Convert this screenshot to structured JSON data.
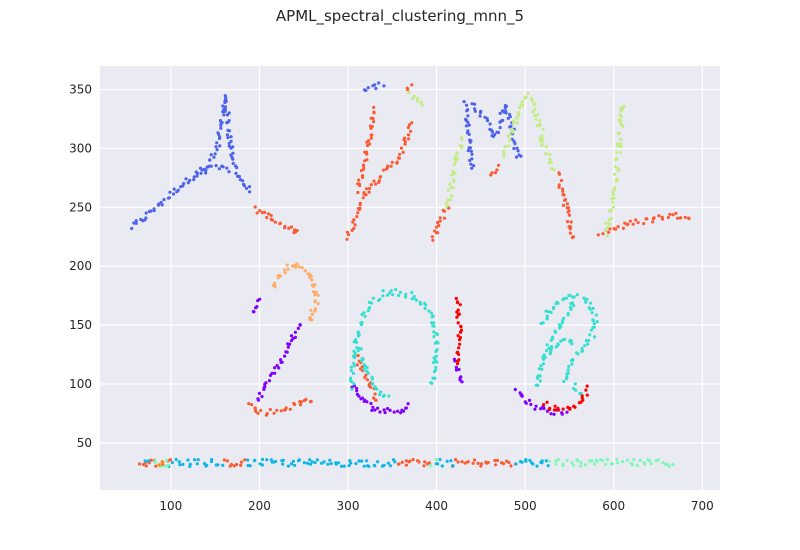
{
  "chart_data": {
    "type": "scatter",
    "title": "APML_spectral_clustering_mnn_5",
    "xlabel": "",
    "ylabel": "",
    "xlim": [
      20,
      720
    ],
    "ylim": [
      10,
      370
    ],
    "xticks": [
      100,
      200,
      300,
      400,
      500,
      600,
      700
    ],
    "yticks": [
      50,
      100,
      150,
      200,
      250,
      300,
      350
    ],
    "grid": true,
    "style": "seaborn-darkgrid",
    "background": "#eaeaf2",
    "gridColor": "#ffffff",
    "clusters": [
      {
        "color": "#4d63ea",
        "segments": [
          [
            [
              55,
              233
            ],
            [
              65,
              238
            ],
            [
              80,
              248
            ],
            [
              95,
              258
            ],
            [
              110,
              268
            ],
            [
              125,
              276
            ],
            [
              140,
              282
            ],
            [
              152,
              300
            ],
            [
              158,
              320
            ],
            [
              161,
              345
            ]
          ],
          [
            [
              161,
              345
            ],
            [
              165,
              320
            ],
            [
              168,
              300
            ],
            [
              172,
              285
            ],
            [
              180,
              272
            ],
            [
              190,
              262
            ]
          ],
          [
            [
              128,
              280
            ],
            [
              140,
              282
            ],
            [
              150,
              283
            ],
            [
              160,
              283
            ],
            [
              168,
              282
            ]
          ],
          [
            [
              318,
              348
            ],
            [
              330,
              352
            ],
            [
              342,
              355
            ]
          ],
          [
            [
              432,
              338
            ],
            [
              436,
              320
            ],
            [
              438,
              298
            ],
            [
              440,
              280
            ]
          ],
          [
            [
              440,
              338
            ],
            [
              450,
              330
            ],
            [
              458,
              320
            ],
            [
              465,
              310
            ]
          ],
          [
            [
              465,
              310
            ],
            [
              472,
              322
            ],
            [
              478,
              338
            ]
          ],
          [
            [
              478,
              338
            ],
            [
              485,
              320
            ],
            [
              490,
              300
            ],
            [
              494,
              290
            ]
          ]
        ]
      },
      {
        "color": "#fa5c34",
        "segments": [
          [
            [
              196,
              248
            ],
            [
              206,
              245
            ],
            [
              214,
              240
            ],
            [
              224,
              235
            ],
            [
              234,
              231
            ],
            [
              247,
              228
            ]
          ],
          [
            [
              300,
              225
            ],
            [
              308,
              240
            ],
            [
              315,
              258
            ],
            [
              325,
              268
            ],
            [
              335,
              275
            ],
            [
              345,
              282
            ],
            [
              355,
              290
            ],
            [
              362,
              300
            ],
            [
              368,
              312
            ],
            [
              372,
              322
            ]
          ],
          [
            [
              310,
              265
            ],
            [
              318,
              285
            ],
            [
              322,
              300
            ],
            [
              326,
              320
            ],
            [
              330,
              335
            ]
          ],
          [
            [
              365,
              350
            ],
            [
              372,
              355
            ]
          ],
          [
            [
              396,
              222
            ],
            [
              402,
              235
            ],
            [
              408,
              245
            ],
            [
              414,
              252
            ]
          ],
          [
            [
              462,
              278
            ],
            [
              466,
              283
            ],
            [
              470,
              286
            ]
          ],
          [
            [
              538,
              278
            ],
            [
              542,
              262
            ],
            [
              546,
              250
            ],
            [
              550,
              240
            ],
            [
              552,
              230
            ],
            [
              556,
              222
            ]
          ],
          [
            [
              585,
              228
            ],
            [
              600,
              232
            ],
            [
              615,
              235
            ],
            [
              630,
              238
            ],
            [
              645,
              240
            ],
            [
              660,
              243
            ],
            [
              675,
              243
            ],
            [
              690,
              243
            ]
          ],
          [
            [
              190,
              83
            ],
            [
              195,
              78
            ],
            [
              200,
              76
            ],
            [
              210,
              76
            ],
            [
              220,
              77
            ],
            [
              232,
              80
            ],
            [
              244,
              83
            ],
            [
              254,
              86
            ],
            [
              262,
              88
            ]
          ],
          [
            [
              308,
              125
            ],
            [
              312,
              118
            ],
            [
              318,
              108
            ],
            [
              325,
              100
            ],
            [
              330,
              92
            ],
            [
              335,
              84
            ]
          ],
          [
            [
              65,
              33
            ],
            [
              100,
              33
            ]
          ],
          [
            [
              160,
              33
            ],
            [
              185,
              33
            ]
          ],
          [
            [
              355,
              33
            ],
            [
              395,
              33
            ]
          ],
          [
            [
              420,
              33
            ],
            [
              490,
              33
            ]
          ]
        ]
      },
      {
        "color": "#c3ec84",
        "segments": [
          [
            [
              370,
              345
            ],
            [
              378,
              342
            ],
            [
              384,
              335
            ]
          ],
          [
            [
              412,
              250
            ],
            [
              416,
              265
            ],
            [
              420,
              280
            ],
            [
              425,
              296
            ],
            [
              430,
              310
            ]
          ],
          [
            [
              475,
              295
            ],
            [
              480,
              305
            ],
            [
              486,
              318
            ],
            [
              492,
              330
            ],
            [
              498,
              342
            ],
            [
              505,
              345
            ]
          ],
          [
            [
              505,
              345
            ],
            [
              512,
              330
            ],
            [
              518,
              315
            ],
            [
              522,
              300
            ],
            [
              528,
              290
            ],
            [
              534,
              280
            ]
          ],
          [
            [
              592,
              228
            ],
            [
              596,
              245
            ],
            [
              600,
              262
            ],
            [
              603,
              280
            ],
            [
              606,
              298
            ],
            [
              608,
              315
            ],
            [
              609,
              330
            ],
            [
              610,
              340
            ]
          ]
        ]
      },
      {
        "color": "#ffac64",
        "segments": [
          [
            [
              216,
              180
            ],
            [
              222,
              192
            ],
            [
              230,
              198
            ],
            [
              240,
              200
            ],
            [
              250,
              199
            ],
            [
              258,
              192
            ],
            [
              262,
              182
            ],
            [
              265,
              172
            ],
            [
              260,
              162
            ],
            [
              254,
              152
            ]
          ]
        ]
      },
      {
        "color": "#8000ff",
        "segments": [
          [
            [
              192,
              162
            ],
            [
              197,
              170
            ],
            [
              200,
              175
            ]
          ],
          [
            [
              246,
              150
            ],
            [
              238,
              140
            ],
            [
              230,
              128
            ],
            [
              222,
              118
            ],
            [
              215,
              108
            ],
            [
              208,
              100
            ],
            [
              202,
              92
            ],
            [
              196,
              85
            ]
          ],
          [
            [
              304,
              98
            ],
            [
              312,
              90
            ],
            [
              322,
              83
            ],
            [
              332,
              79
            ],
            [
              342,
              77
            ],
            [
              352,
              77
            ],
            [
              362,
              79
            ],
            [
              372,
              83
            ]
          ],
          [
            [
              490,
              95
            ],
            [
              498,
              88
            ],
            [
              508,
              83
            ],
            [
              518,
              79
            ],
            [
              528,
              77
            ],
            [
              540,
              76
            ],
            [
              548,
              77
            ]
          ],
          [
            [
              422,
              120
            ],
            [
              424,
              113
            ],
            [
              426,
              106
            ],
            [
              427,
              100
            ]
          ]
        ]
      },
      {
        "color": "#35e0d0",
        "segments": [
          [
            [
              304,
              98
            ],
            [
              306,
              120
            ],
            [
              310,
              140
            ],
            [
              318,
              158
            ],
            [
              328,
              170
            ],
            [
              340,
              177
            ],
            [
              355,
              178
            ],
            [
              370,
              176
            ],
            [
              382,
              170
            ],
            [
              392,
              160
            ],
            [
              398,
              146
            ],
            [
              400,
              130
            ],
            [
              398,
              112
            ],
            [
              394,
              98
            ]
          ],
          [
            [
              312,
              130
            ],
            [
              318,
              118
            ],
            [
              324,
              108
            ],
            [
              330,
              100
            ],
            [
              338,
              92
            ],
            [
              346,
              86
            ]
          ],
          [
            [
              555,
              170
            ],
            [
              548,
              160
            ],
            [
              540,
              150
            ],
            [
              532,
              140
            ],
            [
              524,
              128
            ],
            [
              518,
              115
            ],
            [
              515,
              105
            ],
            [
              515,
              95
            ]
          ],
          [
            [
              520,
              150
            ],
            [
              526,
              160
            ],
            [
              534,
              168
            ],
            [
              544,
              173
            ],
            [
              554,
              175
            ],
            [
              564,
              174
            ],
            [
              572,
              168
            ],
            [
              578,
              160
            ],
            [
              580,
              150
            ],
            [
              575,
              140
            ],
            [
              568,
              132
            ],
            [
              560,
              125
            ],
            [
              552,
              118
            ],
            [
              546,
              108
            ],
            [
              545,
              100
            ]
          ],
          [
            [
              528,
              125
            ],
            [
              534,
              132
            ],
            [
              540,
              138
            ],
            [
              546,
              140
            ],
            [
              552,
              138
            ],
            [
              556,
              132
            ]
          ],
          [
            [
              555,
              100
            ],
            [
              560,
              94
            ],
            [
              566,
              88
            ]
          ]
        ]
      },
      {
        "color": "#ff0000",
        "segments": [
          [
            [
              424,
              172
            ],
            [
              425,
              155
            ],
            [
              426,
              140
            ],
            [
              425,
              128
            ],
            [
              426,
              115
            ]
          ],
          [
            [
              522,
              83
            ],
            [
              530,
              80
            ],
            [
              540,
              78
            ],
            [
              550,
              78
            ],
            [
              558,
              80
            ],
            [
              564,
              85
            ],
            [
              568,
              92
            ],
            [
              570,
              98
            ]
          ]
        ]
      },
      {
        "color": "#0ab7e6",
        "segments": [
          [
            [
              70,
              33
            ],
            [
              75,
              33
            ]
          ],
          [
            [
              100,
              33
            ],
            [
              160,
              33
            ]
          ],
          [
            [
              185,
              33
            ],
            [
              355,
              33
            ]
          ],
          [
            [
              400,
              33
            ],
            [
              420,
              33
            ]
          ],
          [
            [
              490,
              33
            ],
            [
              530,
              33
            ]
          ]
        ]
      },
      {
        "color": "#7df8b9",
        "segments": [
          [
            [
              80,
              33
            ],
            [
              100,
              33
            ]
          ],
          [
            [
              395,
              33
            ],
            [
              400,
              33
            ]
          ],
          [
            [
              530,
              33
            ],
            [
              668,
              33
            ]
          ]
        ]
      },
      {
        "color": "#ff8c00",
        "segments": [
          [
            [
              88,
              33
            ],
            [
              92,
              33
            ]
          ]
        ]
      }
    ]
  }
}
